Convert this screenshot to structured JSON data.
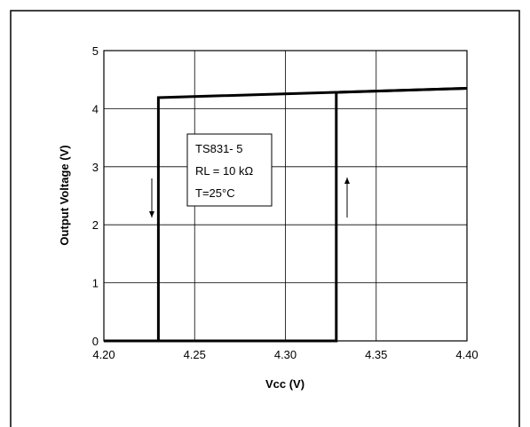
{
  "chart_data": {
    "type": "line",
    "title": "",
    "xlabel": "Vcc (V)",
    "ylabel": "Output Voltage (V)",
    "xlim": [
      4.2,
      4.4
    ],
    "ylim": [
      0,
      5
    ],
    "x_ticks": [
      "4.20",
      "4.25",
      "4.30",
      "4.35",
      "4.40"
    ],
    "y_ticks": [
      "0",
      "1",
      "2",
      "3",
      "4",
      "5"
    ],
    "grid": true,
    "legend": null,
    "annotation": {
      "lines": [
        "TS831- 5",
        "RL = 10 kΩ",
        "T=25°C"
      ]
    },
    "series": [
      {
        "direction": "decreasing Vcc",
        "arrow": "down",
        "points": [
          {
            "x": 4.4,
            "y": 4.35
          },
          {
            "x": 4.23,
            "y": 4.19
          },
          {
            "x": 4.23,
            "y": 0
          },
          {
            "x": 4.2,
            "y": 0
          }
        ]
      },
      {
        "direction": "increasing Vcc",
        "arrow": "up",
        "points": [
          {
            "x": 4.2,
            "y": 0
          },
          {
            "x": 4.328,
            "y": 0
          },
          {
            "x": 4.328,
            "y": 4.28
          },
          {
            "x": 4.4,
            "y": 4.35
          }
        ]
      }
    ],
    "colors": {
      "line": "#000000",
      "grid": "#000000"
    }
  }
}
